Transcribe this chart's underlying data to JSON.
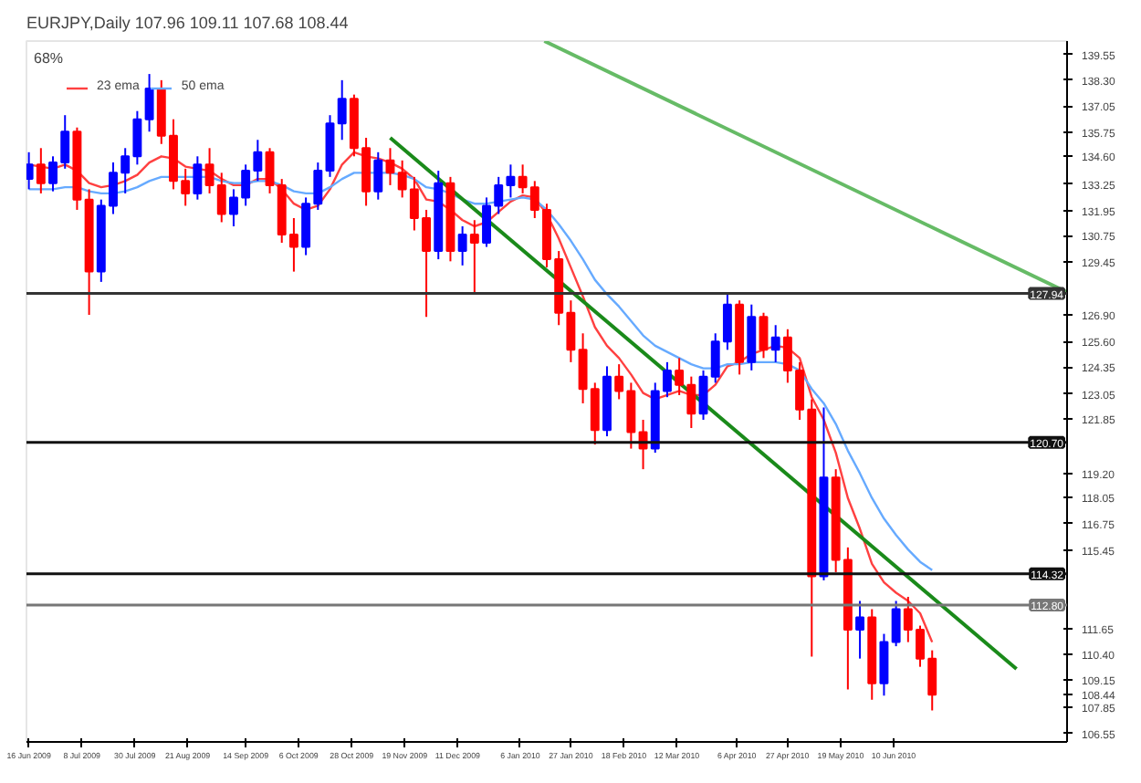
{
  "chart_data": {
    "type": "candlestick",
    "title": "EURJPY,Daily  107.96 109.11 107.68 108.44",
    "annotations": [
      "68%"
    ],
    "x": [
      "2009-06-16",
      "2009-06-21",
      "2009-06-26",
      "2009-07-01",
      "2009-07-06",
      "2009-07-11",
      "2009-07-16",
      "2009-07-21",
      "2009-07-26",
      "2009-07-31",
      "2009-08-05",
      "2009-08-10",
      "2009-08-15",
      "2009-08-20",
      "2009-08-25",
      "2009-08-30",
      "2009-09-04",
      "2009-09-09",
      "2009-09-14",
      "2009-09-19",
      "2009-09-24",
      "2009-09-29",
      "2009-10-04",
      "2009-10-09",
      "2009-10-14",
      "2009-10-19",
      "2009-10-24",
      "2009-10-29",
      "2009-11-03",
      "2009-11-08",
      "2009-11-13",
      "2009-11-18",
      "2009-11-23",
      "2009-11-28",
      "2009-12-03",
      "2009-12-08",
      "2009-12-13",
      "2009-12-18",
      "2009-12-23",
      "2009-12-28",
      "2010-01-02",
      "2010-01-07",
      "2010-01-12",
      "2010-01-17",
      "2010-01-22",
      "2010-01-27",
      "2010-02-01",
      "2010-02-06",
      "2010-02-11",
      "2010-02-16",
      "2010-02-21",
      "2010-02-26",
      "2010-03-03",
      "2010-03-08",
      "2010-03-13",
      "2010-03-18",
      "2010-03-23",
      "2010-03-28",
      "2010-04-02",
      "2010-04-07",
      "2010-04-12",
      "2010-04-17",
      "2010-04-22",
      "2010-04-27",
      "2010-05-02",
      "2010-05-07",
      "2010-05-12",
      "2010-05-17",
      "2010-05-22",
      "2010-05-27",
      "2010-06-01",
      "2010-06-06",
      "2010-06-11",
      "2010-06-16",
      "2010-06-21",
      "2010-06-26"
    ],
    "ohlc": [
      [
        133.5,
        134.8,
        133.0,
        134.2
      ],
      [
        134.2,
        135.0,
        132.8,
        133.3
      ],
      [
        133.3,
        134.6,
        132.9,
        134.3
      ],
      [
        134.3,
        136.6,
        134.0,
        135.8
      ],
      [
        135.8,
        136.0,
        132.0,
        132.5
      ],
      [
        132.5,
        133.0,
        126.9,
        129.0
      ],
      [
        129.0,
        132.5,
        128.5,
        132.2
      ],
      [
        132.2,
        134.3,
        131.8,
        133.8
      ],
      [
        133.8,
        135.0,
        132.8,
        134.6
      ],
      [
        134.6,
        136.8,
        134.2,
        136.4
      ],
      [
        136.4,
        138.6,
        135.8,
        137.9
      ],
      [
        137.9,
        138.3,
        135.2,
        135.6
      ],
      [
        135.6,
        136.4,
        133.0,
        133.4
      ],
      [
        133.4,
        134.0,
        132.2,
        132.8
      ],
      [
        132.8,
        134.6,
        132.5,
        134.2
      ],
      [
        134.2,
        135.0,
        132.8,
        133.2
      ],
      [
        133.2,
        133.8,
        131.4,
        131.8
      ],
      [
        131.8,
        133.0,
        131.2,
        132.6
      ],
      [
        132.6,
        134.2,
        132.2,
        133.9
      ],
      [
        133.9,
        135.4,
        133.4,
        134.8
      ],
      [
        134.8,
        135.0,
        132.8,
        133.2
      ],
      [
        133.2,
        133.5,
        130.4,
        130.8
      ],
      [
        130.8,
        131.6,
        129.0,
        130.2
      ],
      [
        130.2,
        132.6,
        129.8,
        132.3
      ],
      [
        132.3,
        134.3,
        132.0,
        133.9
      ],
      [
        133.9,
        136.6,
        133.6,
        136.2
      ],
      [
        136.2,
        138.3,
        135.4,
        137.4
      ],
      [
        137.4,
        137.6,
        134.6,
        135.0
      ],
      [
        135.0,
        135.5,
        132.2,
        132.9
      ],
      [
        132.9,
        134.8,
        132.5,
        134.4
      ],
      [
        134.4,
        135.0,
        133.2,
        133.8
      ],
      [
        133.8,
        134.4,
        132.6,
        133.0
      ],
      [
        133.0,
        133.6,
        131.0,
        131.6
      ],
      [
        131.6,
        132.0,
        126.8,
        130.0
      ],
      [
        130.0,
        133.9,
        129.6,
        133.3
      ],
      [
        133.3,
        133.6,
        129.5,
        130.0
      ],
      [
        130.0,
        131.2,
        129.3,
        130.8
      ],
      [
        130.8,
        131.5,
        127.9,
        130.4
      ],
      [
        130.4,
        132.6,
        130.2,
        132.2
      ],
      [
        132.2,
        133.6,
        131.8,
        133.2
      ],
      [
        133.2,
        134.2,
        132.6,
        133.6
      ],
      [
        133.6,
        134.2,
        132.8,
        133.1
      ],
      [
        133.1,
        133.4,
        131.6,
        132.0
      ],
      [
        132.0,
        132.3,
        129.2,
        129.6
      ],
      [
        129.6,
        130.0,
        126.4,
        127.0
      ],
      [
        127.0,
        127.6,
        124.6,
        125.2
      ],
      [
        125.2,
        126.0,
        122.6,
        123.3
      ],
      [
        123.3,
        123.6,
        120.6,
        121.3
      ],
      [
        121.3,
        124.4,
        121.0,
        123.9
      ],
      [
        123.9,
        124.5,
        122.8,
        123.2
      ],
      [
        123.2,
        123.6,
        120.4,
        121.2
      ],
      [
        121.2,
        121.8,
        119.4,
        120.4
      ],
      [
        120.4,
        123.6,
        120.2,
        123.2
      ],
      [
        123.2,
        124.6,
        122.9,
        124.2
      ],
      [
        124.2,
        124.8,
        123.0,
        123.5
      ],
      [
        123.5,
        123.9,
        121.4,
        122.1
      ],
      [
        122.1,
        124.2,
        121.8,
        123.9
      ],
      [
        123.9,
        126.0,
        123.6,
        125.6
      ],
      [
        125.6,
        127.9,
        125.2,
        127.4
      ],
      [
        127.4,
        127.6,
        124.0,
        124.6
      ],
      [
        124.6,
        127.4,
        124.2,
        126.8
      ],
      [
        126.8,
        127.0,
        124.8,
        125.2
      ],
      [
        125.2,
        126.4,
        124.6,
        125.8
      ],
      [
        125.8,
        126.2,
        123.6,
        124.2
      ],
      [
        124.2,
        124.6,
        121.8,
        122.3
      ],
      [
        122.3,
        122.8,
        110.3,
        114.2
      ],
      [
        114.2,
        122.4,
        114.0,
        119.0
      ],
      [
        119.0,
        119.4,
        114.4,
        115.0
      ],
      [
        115.0,
        115.6,
        108.7,
        111.6
      ],
      [
        111.6,
        113.0,
        110.2,
        112.2
      ],
      [
        112.2,
        112.6,
        108.2,
        109.0
      ],
      [
        109.0,
        111.4,
        108.4,
        111.0
      ],
      [
        111.0,
        113.0,
        110.8,
        112.6
      ],
      [
        112.6,
        113.2,
        111.0,
        111.6
      ],
      [
        111.6,
        111.8,
        109.8,
        110.2
      ],
      [
        110.2,
        110.6,
        107.68,
        108.44
      ]
    ],
    "colors": [
      "#0000ff",
      "#ff0000",
      "#0000ff",
      "#0000ff",
      "#ff0000",
      "#ff0000",
      "#0000ff",
      "#0000ff",
      "#0000ff",
      "#0000ff",
      "#0000ff",
      "#ff0000",
      "#ff0000",
      "#ff0000",
      "#0000ff",
      "#ff0000",
      "#ff0000",
      "#0000ff",
      "#0000ff",
      "#0000ff",
      "#ff0000",
      "#ff0000",
      "#ff0000",
      "#0000ff",
      "#0000ff",
      "#0000ff",
      "#0000ff",
      "#ff0000",
      "#ff0000",
      "#0000ff",
      "#ff0000",
      "#ff0000",
      "#ff0000",
      "#ff0000",
      "#0000ff",
      "#ff0000",
      "#0000ff",
      "#ff0000",
      "#0000ff",
      "#0000ff",
      "#0000ff",
      "#ff0000",
      "#ff0000",
      "#ff0000",
      "#ff0000",
      "#ff0000",
      "#ff0000",
      "#ff0000",
      "#0000ff",
      "#ff0000",
      "#ff0000",
      "#ff0000",
      "#0000ff",
      "#0000ff",
      "#ff0000",
      "#ff0000",
      "#0000ff",
      "#0000ff",
      "#0000ff",
      "#ff0000",
      "#0000ff",
      "#ff0000",
      "#0000ff",
      "#ff0000",
      "#ff0000",
      "#ff0000",
      "#0000ff",
      "#ff0000",
      "#ff0000",
      "#0000ff",
      "#ff0000",
      "#0000ff",
      "#0000ff",
      "#ff0000",
      "#ff0000",
      "#ff0000"
    ],
    "series": [
      {
        "type": "line",
        "name": "23 ema",
        "color": "#ff4040",
        "values": [
          134.2,
          134.1,
          134.0,
          134.2,
          133.9,
          133.3,
          133.1,
          133.2,
          133.4,
          133.7,
          134.3,
          134.6,
          134.5,
          134.1,
          134.0,
          133.9,
          133.5,
          133.2,
          133.2,
          133.5,
          133.5,
          133.0,
          132.3,
          132.0,
          132.2,
          133.0,
          134.2,
          134.8,
          134.6,
          134.5,
          134.3,
          134.0,
          133.5,
          132.5,
          132.4,
          132.0,
          131.5,
          131.2,
          131.4,
          131.9,
          132.4,
          132.7,
          132.6,
          131.8,
          130.6,
          129.2,
          127.8,
          126.3,
          125.4,
          124.8,
          124.0,
          123.1,
          122.8,
          123.0,
          123.2,
          123.0,
          123.0,
          123.5,
          124.4,
          124.6,
          125.0,
          125.2,
          125.4,
          125.3,
          124.8,
          122.9,
          121.8,
          120.2,
          118.0,
          116.5,
          114.8,
          113.9,
          113.4,
          113.0,
          112.4,
          111.0
        ]
      },
      {
        "type": "line",
        "name": "50 ema",
        "color": "#66aaff",
        "values": [
          133.0,
          133.0,
          133.0,
          133.1,
          133.1,
          132.9,
          132.8,
          132.8,
          132.9,
          133.1,
          133.4,
          133.6,
          133.6,
          133.6,
          133.6,
          133.6,
          133.4,
          133.3,
          133.3,
          133.4,
          133.4,
          133.2,
          132.9,
          132.8,
          132.8,
          133.1,
          133.5,
          133.8,
          133.8,
          133.8,
          133.8,
          133.7,
          133.5,
          133.1,
          133.0,
          132.8,
          132.5,
          132.3,
          132.3,
          132.4,
          132.5,
          132.6,
          132.5,
          132.0,
          131.3,
          130.5,
          129.6,
          128.6,
          127.9,
          127.3,
          126.6,
          125.9,
          125.4,
          125.1,
          124.8,
          124.5,
          124.3,
          124.3,
          124.5,
          124.5,
          124.6,
          124.6,
          124.6,
          124.5,
          124.2,
          123.3,
          122.6,
          121.6,
          120.3,
          119.2,
          118.0,
          117.0,
          116.2,
          115.5,
          114.9,
          114.5
        ]
      },
      {
        "type": "line",
        "color": "#1a8a1a",
        "x": [
          "2009-11-13",
          "2010-07-31"
        ],
        "values": [
          135.5,
          109.7
        ]
      },
      {
        "type": "line",
        "color": "#66bb66",
        "x": [
          "2010-01-16",
          "2010-08-21"
        ],
        "values": [
          140.2,
          128.0
        ]
      }
    ],
    "ref_lines": [
      {
        "axis": "y",
        "value": 127.94,
        "label": "127.94",
        "color": "#333333"
      },
      {
        "axis": "y",
        "value": 120.7,
        "label": "120.70",
        "color": "#111111"
      },
      {
        "axis": "y",
        "value": 114.32,
        "label": "114.32",
        "color": "#111111"
      },
      {
        "axis": "y",
        "value": 112.8,
        "label": "112.80",
        "color": "#777777"
      }
    ],
    "xlim": [
      "2009-06-15",
      "2010-08-21"
    ],
    "xticks": [
      {
        "value": "2009-06-16",
        "label": "16 Jun 2009"
      },
      {
        "value": "2009-07-08",
        "label": "8 Jul 2009"
      },
      {
        "value": "2009-07-30",
        "label": "30 Jul 2009"
      },
      {
        "value": "2009-08-21",
        "label": "21 Aug 2009"
      },
      {
        "value": "2009-09-14",
        "label": "14 Sep 2009"
      },
      {
        "value": "2009-10-06",
        "label": "6 Oct 2009"
      },
      {
        "value": "2009-10-28",
        "label": "28 Oct 2009"
      },
      {
        "value": "2009-11-19",
        "label": "19 Nov 2009"
      },
      {
        "value": "2009-12-11",
        "label": "11 Dec 2009"
      },
      {
        "value": "2010-01-06",
        "label": "6 Jan 2010"
      },
      {
        "value": "2010-01-27",
        "label": "27 Jan 2010"
      },
      {
        "value": "2010-02-18",
        "label": "18 Feb 2010"
      },
      {
        "value": "2010-03-12",
        "label": "12 Mar 2010"
      },
      {
        "value": "2010-04-06",
        "label": "6 Apr 2010"
      },
      {
        "value": "2010-04-27",
        "label": "27 Apr 2010"
      },
      {
        "value": "2010-05-19",
        "label": "19 May 2010"
      },
      {
        "value": "2010-06-10",
        "label": "10 Jun 2010"
      }
    ],
    "ylim": [
      106.15,
      140.2
    ],
    "yticks": [
      139.55,
      {
        "value": 138.3,
        "label": "138.30"
      },
      137.05,
      135.75,
      {
        "value": 134.6,
        "label": "134.60"
      },
      133.25,
      131.95,
      130.75,
      129.45,
      {
        "value": 126.9,
        "label": "126.90"
      },
      {
        "value": 125.6,
        "label": "125.60"
      },
      124.35,
      123.05,
      121.85,
      {
        "value": 119.2,
        "label": "119.20"
      },
      118.05,
      116.75,
      115.45,
      111.65,
      {
        "value": 110.4,
        "label": "110.40"
      },
      109.15,
      108.44,
      107.85,
      106.55
    ],
    "legend": "top left",
    "grid": false
  }
}
